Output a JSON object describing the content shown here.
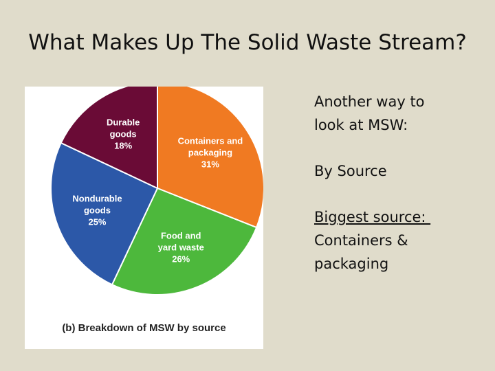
{
  "title": "What Makes Up The Solid Waste Stream?",
  "chart_data": {
    "type": "pie",
    "categories": [
      "Containers and packaging",
      "Food and yard waste",
      "Nondurable goods",
      "Durable goods"
    ],
    "values": [
      31,
      26,
      25,
      18
    ],
    "value_labels": [
      "31%",
      "26%",
      "25%",
      "18%"
    ],
    "colors": [
      "#f07a22",
      "#4db83c",
      "#2c58a8",
      "#6a0b36"
    ],
    "caption": "(b) Breakdown of MSW by source"
  },
  "text": {
    "line1": "Another way to look at MSW:",
    "line2": "By Source",
    "line3": "Biggest source: ",
    "line4": "Containers & packaging"
  }
}
